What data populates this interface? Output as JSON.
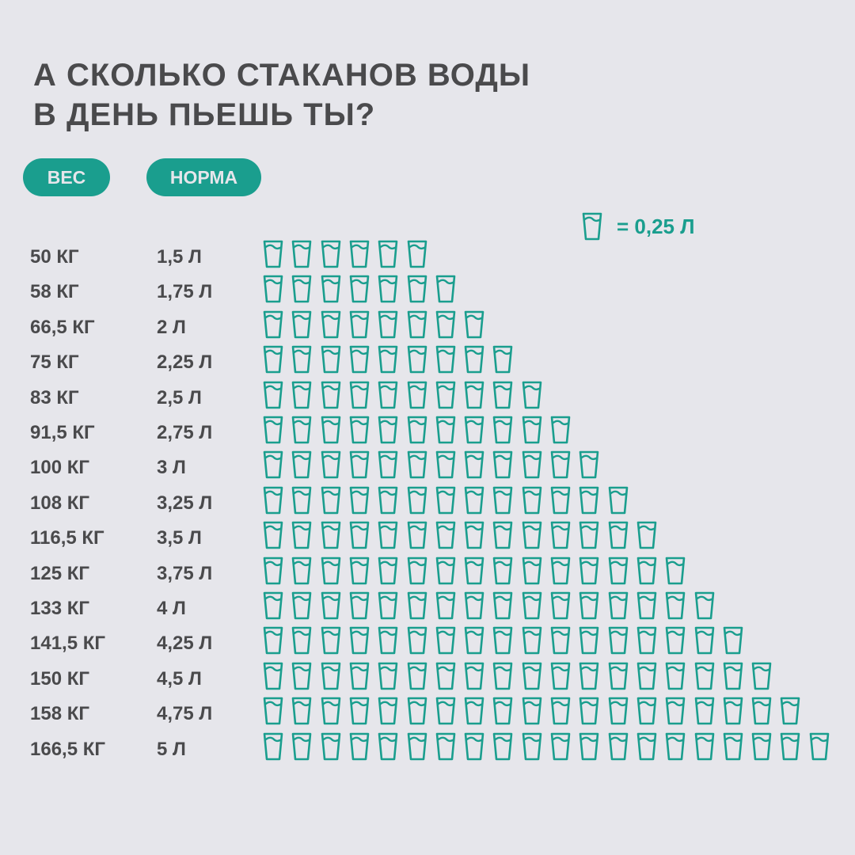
{
  "title": {
    "line1": "А СКОЛЬКО СТАКАНОВ ВОДЫ",
    "line2": "В ДЕНЬ ПЬЕШЬ ТЫ?"
  },
  "headers": {
    "weight": "ВЕС",
    "norm": "НОРМА"
  },
  "legend": {
    "icon": "water-glass-icon",
    "label": "= 0,25 Л"
  },
  "colors": {
    "accent": "#1a9e8e",
    "background": "#e6e6eb",
    "text": "#4a4a4c"
  },
  "chart_data": {
    "type": "pictograph",
    "unit_per_icon_liters": 0.25,
    "columns": [
      "ВЕС",
      "НОРМА"
    ],
    "rows": [
      {
        "weight": "50 КГ",
        "norm": "1,5 Л",
        "glasses": 6
      },
      {
        "weight": "58 КГ",
        "norm": "1,75 Л",
        "glasses": 7
      },
      {
        "weight": "66,5 КГ",
        "norm": "2 Л",
        "glasses": 8
      },
      {
        "weight": "75 КГ",
        "norm": "2,25 Л",
        "glasses": 9
      },
      {
        "weight": "83 КГ",
        "norm": "2,5 Л",
        "glasses": 10
      },
      {
        "weight": "91,5 КГ",
        "norm": "2,75 Л",
        "glasses": 11
      },
      {
        "weight": "100 КГ",
        "norm": "3 Л",
        "glasses": 12
      },
      {
        "weight": "108 КГ",
        "norm": "3,25 Л",
        "glasses": 13
      },
      {
        "weight": "116,5 КГ",
        "norm": "3,5 Л",
        "glasses": 14
      },
      {
        "weight": "125 КГ",
        "norm": "3,75 Л",
        "glasses": 15
      },
      {
        "weight": "133 КГ",
        "norm": "4 Л",
        "glasses": 16
      },
      {
        "weight": "141,5 КГ",
        "norm": "4,25 Л",
        "glasses": 17
      },
      {
        "weight": "150 КГ",
        "norm": "4,5 Л",
        "glasses": 18
      },
      {
        "weight": "158 КГ",
        "norm": "4,75 Л",
        "glasses": 19
      },
      {
        "weight": "166,5 КГ",
        "norm": "5 Л",
        "glasses": 20
      }
    ]
  }
}
